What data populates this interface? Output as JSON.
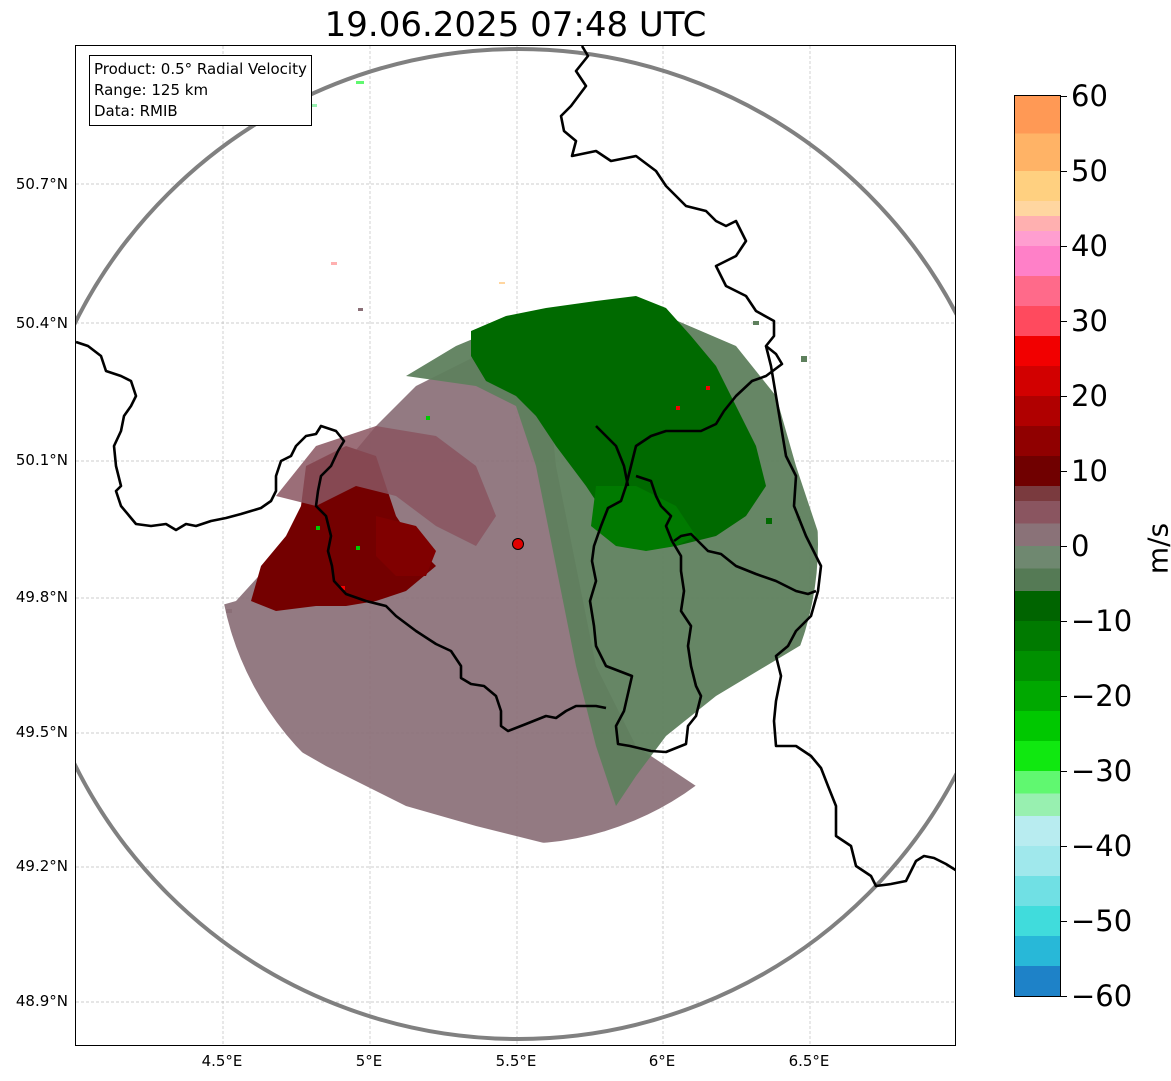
{
  "title": "19.06.2025 07:48 UTC",
  "info_box": {
    "product": "Product: 0.5° Radial Velocity",
    "range": "Range: 125 km",
    "data_source": "Data: RMIB"
  },
  "lat_labels": [
    "50.7°N",
    "50.4°N",
    "50.1°N",
    "49.8°N",
    "49.5°N",
    "49.2°N",
    "48.9°N"
  ],
  "lon_labels": [
    "4.5°E",
    "5°E",
    "5.5°E",
    "6°E",
    "6.5°E"
  ],
  "colorbar": {
    "unit": "m/s",
    "min": -60,
    "max": 60,
    "tick_labels": [
      "60",
      "50",
      "40",
      "30",
      "20",
      "10",
      "0",
      "−10",
      "−20",
      "−30",
      "−40",
      "−50",
      "−60"
    ],
    "tick_values": [
      60,
      50,
      40,
      30,
      20,
      10,
      0,
      -10,
      -20,
      -30,
      -40,
      -50,
      -60
    ],
    "bands": [
      {
        "from": 55,
        "to": 60,
        "color": "#ff9955"
      },
      {
        "from": 50,
        "to": 55,
        "color": "#ffb366"
      },
      {
        "from": 46,
        "to": 50,
        "color": "#ffd080"
      },
      {
        "from": 44,
        "to": 46,
        "color": "#ffd6a0"
      },
      {
        "from": 42,
        "to": 44,
        "color": "#ffb0b0"
      },
      {
        "from": 40,
        "to": 42,
        "color": "#ff9ed0"
      },
      {
        "from": 36,
        "to": 40,
        "color": "#ff80c8"
      },
      {
        "from": 32,
        "to": 36,
        "color": "#ff6a8a"
      },
      {
        "from": 28,
        "to": 32,
        "color": "#ff4a5e"
      },
      {
        "from": 24,
        "to": 28,
        "color": "#f20000"
      },
      {
        "from": 20,
        "to": 24,
        "color": "#d20000"
      },
      {
        "from": 16,
        "to": 20,
        "color": "#b00000"
      },
      {
        "from": 12,
        "to": 16,
        "color": "#900000"
      },
      {
        "from": 8,
        "to": 12,
        "color": "#700000"
      },
      {
        "from": 6,
        "to": 8,
        "color": "#7a3a3e"
      },
      {
        "from": 3,
        "to": 6,
        "color": "#8a5560"
      },
      {
        "from": 0,
        "to": 3,
        "color": "#8a7278"
      },
      {
        "from": -3,
        "to": 0,
        "color": "#6f8870"
      },
      {
        "from": -6,
        "to": -3,
        "color": "#557a55"
      },
      {
        "from": -10,
        "to": -6,
        "color": "#006400"
      },
      {
        "from": -14,
        "to": -10,
        "color": "#007a00"
      },
      {
        "from": -18,
        "to": -14,
        "color": "#009000"
      },
      {
        "from": -22,
        "to": -18,
        "color": "#00a800"
      },
      {
        "from": -26,
        "to": -22,
        "color": "#00c800"
      },
      {
        "from": -30,
        "to": -26,
        "color": "#10e810"
      },
      {
        "from": -33,
        "to": -30,
        "color": "#60f870"
      },
      {
        "from": -36,
        "to": -33,
        "color": "#98f0b0"
      },
      {
        "from": -40,
        "to": -36,
        "color": "#b8ecf0"
      },
      {
        "from": -44,
        "to": -40,
        "color": "#a0e8ec"
      },
      {
        "from": -48,
        "to": -44,
        "color": "#70e0e4"
      },
      {
        "from": -52,
        "to": -48,
        "color": "#40dcdc"
      },
      {
        "from": -56,
        "to": -52,
        "color": "#28b8d8"
      },
      {
        "from": -60,
        "to": -56,
        "color": "#1e82c8"
      }
    ]
  },
  "colors": {
    "range_ring": "#808080",
    "border": "#000000",
    "grid": "#b8b8b8",
    "radar_site": "#e00000",
    "inbound_strong": "#006a00",
    "inbound_weak": "#5a7d5a",
    "outbound_weak": "#8a6f77",
    "outbound_strong": "#760000"
  }
}
